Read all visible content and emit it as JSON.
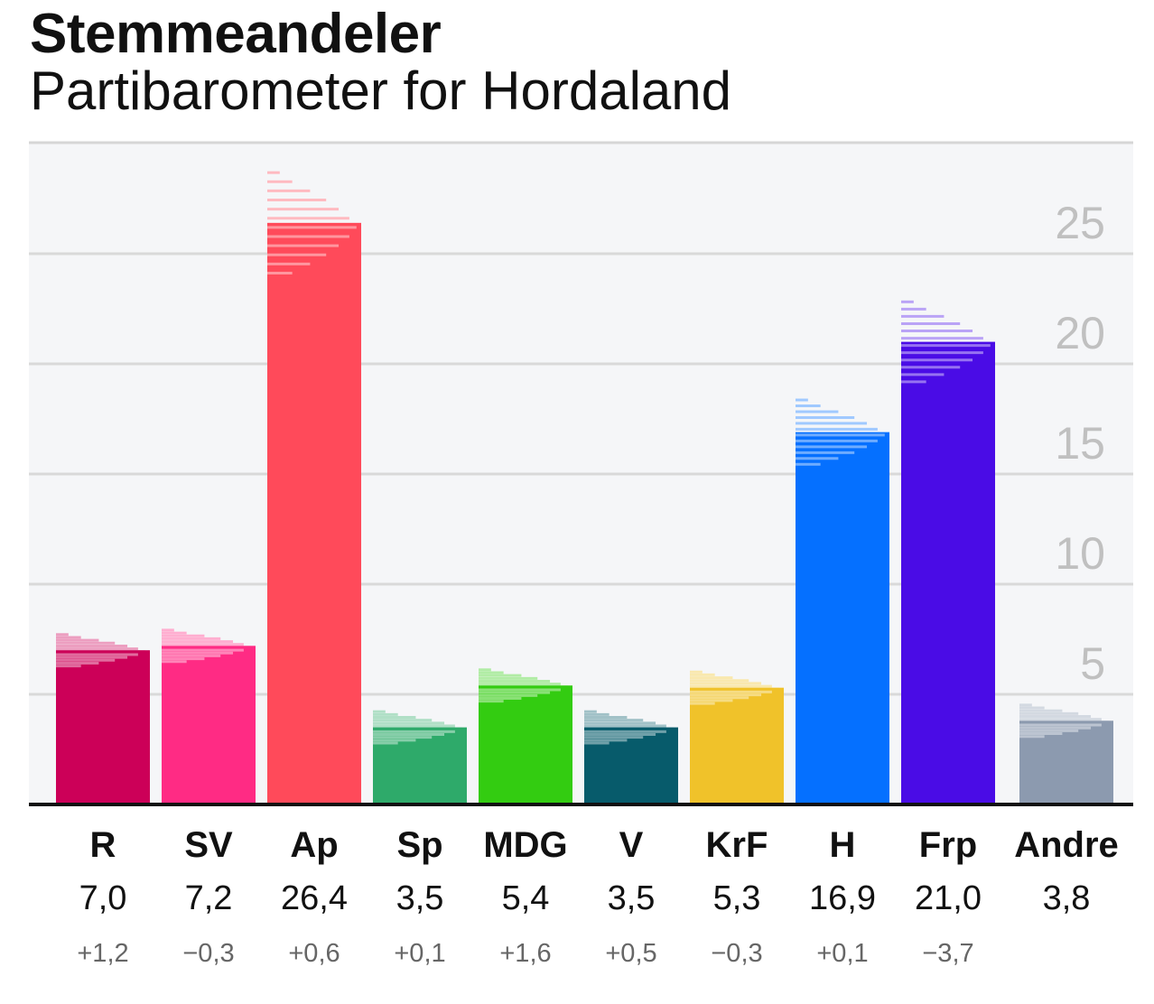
{
  "title": "Stemmeandeler",
  "subtitle": "Partibarometer for Hordaland",
  "chart_data": {
    "type": "bar",
    "title": "Stemmeandeler",
    "subtitle": "Partibarometer for Hordaland",
    "ylim": [
      0,
      30
    ],
    "yticks": [
      "5",
      "10",
      "15",
      "20",
      "25"
    ],
    "grid": true,
    "categories": [
      "R",
      "SV",
      "Ap",
      "Sp",
      "MDG",
      "V",
      "KrF",
      "H",
      "Frp",
      "Andre"
    ],
    "values": [
      7.0,
      7.2,
      26.4,
      3.5,
      5.4,
      3.5,
      5.3,
      16.9,
      21.0,
      3.8
    ],
    "value_labels": [
      "7,0",
      "7,2",
      "26,4",
      "3,5",
      "5,4",
      "3,5",
      "5,3",
      "16,9",
      "21,0",
      "3,8"
    ],
    "change_labels": [
      "+1,2",
      "−0,3",
      "+0,6",
      "+0,1",
      "+1,6",
      "+0,5",
      "−0,3",
      "+0,1",
      "−3,7",
      ""
    ],
    "colors": [
      "#cc0058",
      "#ff2b84",
      "#ff4a5a",
      "#2eaa6a",
      "#33cc11",
      "#075b6b",
      "#f0c22a",
      "#0570ff",
      "#4a0ce6",
      "#8c9aaf"
    ]
  }
}
